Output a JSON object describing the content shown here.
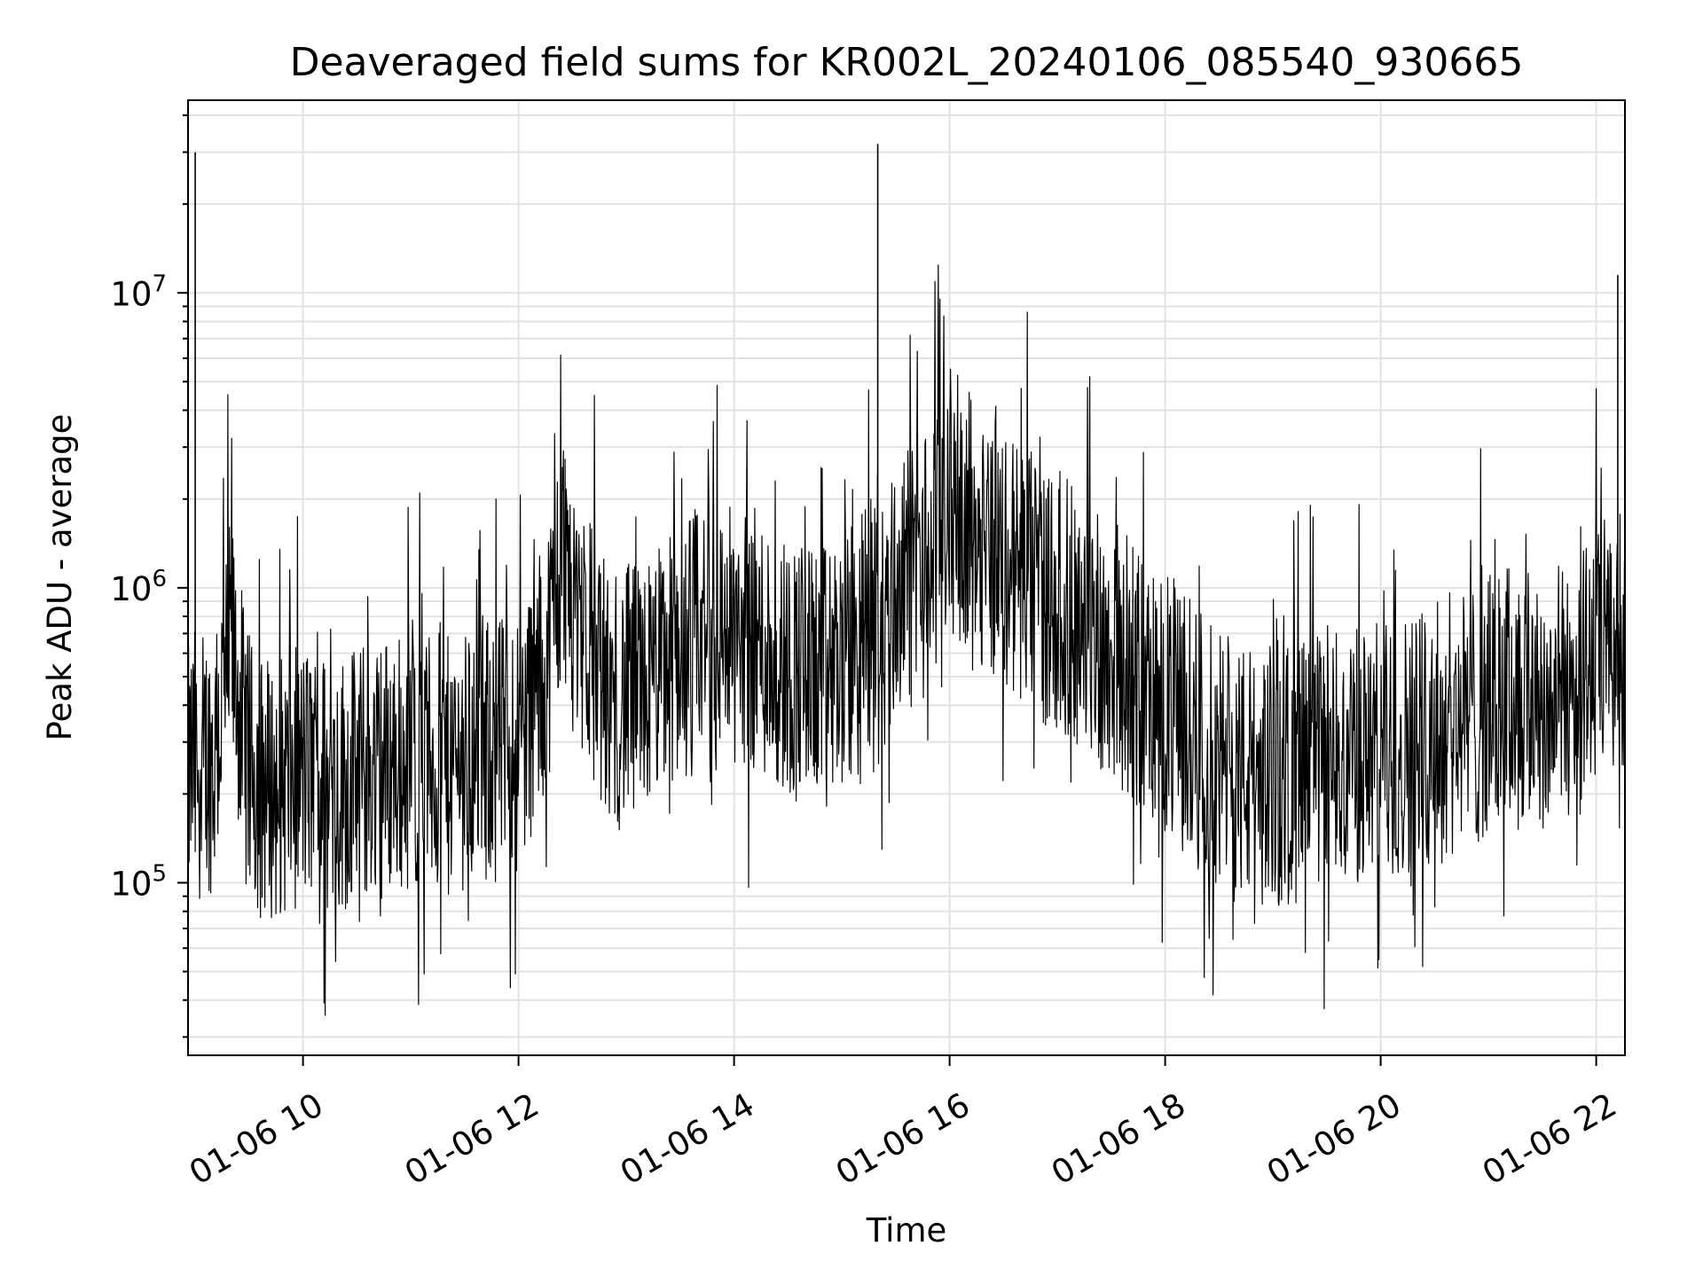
{
  "chart_data": {
    "type": "line",
    "title": "Deaveraged field sums for KR002L_20240106_085540_930665",
    "xlabel": "Time",
    "ylabel": "Peak ADU - average",
    "x_axis": {
      "kind": "time",
      "range": [
        "2024-01-06 08:56",
        "2024-01-06 22:16"
      ],
      "ticks": [
        {
          "value": "2024-01-06 10:00",
          "label": "01-06 10"
        },
        {
          "value": "2024-01-06 12:00",
          "label": "01-06 12"
        },
        {
          "value": "2024-01-06 14:00",
          "label": "01-06 14"
        },
        {
          "value": "2024-01-06 16:00",
          "label": "01-06 16"
        },
        {
          "value": "2024-01-06 18:00",
          "label": "01-06 18"
        },
        {
          "value": "2024-01-06 20:00",
          "label": "01-06 20"
        },
        {
          "value": "2024-01-06 22:00",
          "label": "01-06 22"
        }
      ]
    },
    "y_axis": {
      "scale": "log",
      "range": [
        26000,
        45000000
      ],
      "major_ticks": [
        {
          "value": 100000,
          "base": "10",
          "exp": "5"
        },
        {
          "value": 1000000,
          "base": "10",
          "exp": "6"
        },
        {
          "value": 10000000,
          "base": "10",
          "exp": "7"
        }
      ]
    },
    "grid": true,
    "line_color": "#000000",
    "series": [
      {
        "x": [
          "2024-01-06 08:56",
          "2024-01-06 09:00",
          "2024-01-06 09:05",
          "2024-01-06 09:10",
          "2024-01-06 09:20",
          "2024-01-06 09:30",
          "2024-01-06 09:45",
          "2024-01-06 10:00",
          "2024-01-06 10:20",
          "2024-01-06 10:40",
          "2024-01-06 11:00",
          "2024-01-06 11:20",
          "2024-01-06 11:40",
          "2024-01-06 12:00",
          "2024-01-06 12:15",
          "2024-01-06 12:25",
          "2024-01-06 12:35",
          "2024-01-06 12:50",
          "2024-01-06 13:10",
          "2024-01-06 13:30",
          "2024-01-06 13:50",
          "2024-01-06 14:10",
          "2024-01-06 14:30",
          "2024-01-06 14:50",
          "2024-01-06 15:10",
          "2024-01-06 15:20",
          "2024-01-06 15:30",
          "2024-01-06 15:45",
          "2024-01-06 16:00",
          "2024-01-06 16:15",
          "2024-01-06 16:30",
          "2024-01-06 16:50",
          "2024-01-06 17:10",
          "2024-01-06 17:30",
          "2024-01-06 17:50",
          "2024-01-06 18:10",
          "2024-01-06 18:30",
          "2024-01-06 18:50",
          "2024-01-06 19:10",
          "2024-01-06 19:30",
          "2024-01-06 19:50",
          "2024-01-06 20:10",
          "2024-01-06 20:30",
          "2024-01-06 20:50",
          "2024-01-06 21:10",
          "2024-01-06 21:30",
          "2024-01-06 21:50",
          "2024-01-06 22:05",
          "2024-01-06 22:12",
          "2024-01-06 22:16"
        ],
        "y": [
          250000,
          30000000,
          300000,
          280000,
          700000,
          260000,
          230000,
          260000,
          240000,
          270000,
          300000,
          270000,
          320000,
          330000,
          600000,
          1500000,
          900000,
          450000,
          500000,
          700000,
          800000,
          750000,
          600000,
          550000,
          700000,
          32000000,
          1100000,
          1300000,
          2200000,
          1800000,
          1400000,
          1100000,
          900000,
          700000,
          500000,
          400000,
          280000,
          250000,
          260000,
          280000,
          300000,
          320000,
          370000,
          400000,
          480000,
          450000,
          520000,
          700000,
          11500000,
          700000
        ]
      }
    ]
  }
}
